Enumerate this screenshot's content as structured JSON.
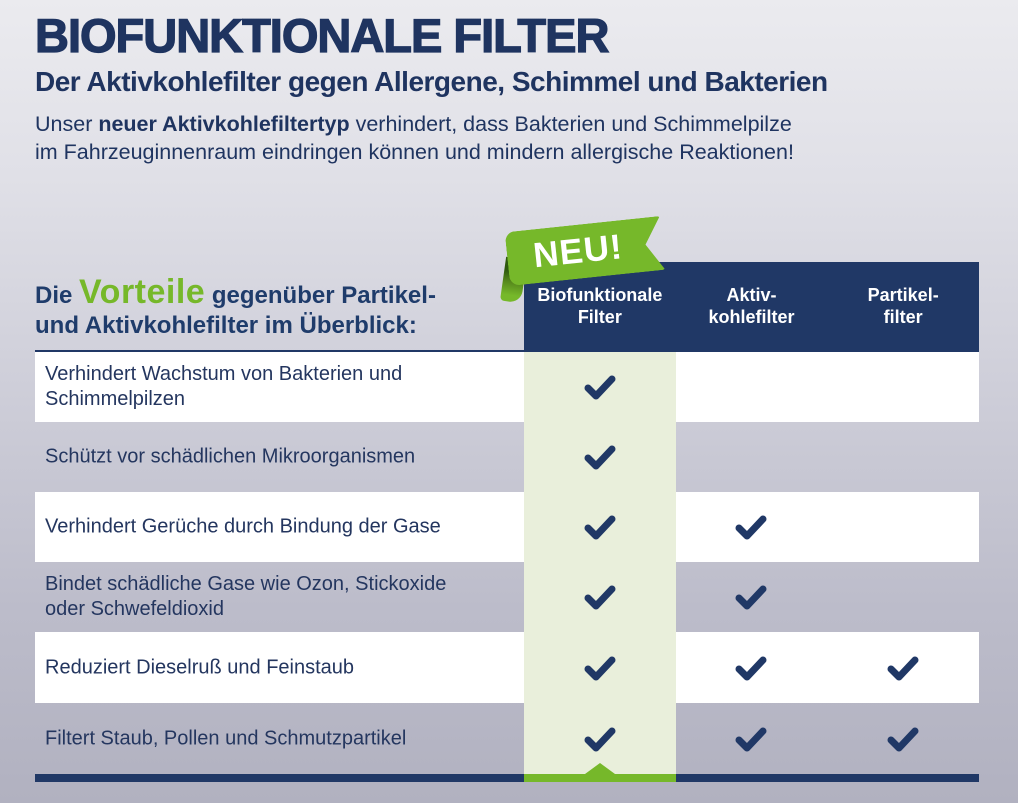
{
  "header": {
    "title": "BIOFUNKTIONALE FILTER",
    "subtitle": "Der Aktivkohlefilter gegen Allergene, Schimmel und Bakterien",
    "lead": {
      "prefix": "Unser ",
      "bold": "neuer Aktivkohlefiltertyp",
      "rest_line1": " verhindert, dass Bakterien und Schimmelpilze",
      "line2": "im Fahrzeuginnenraum eindringen können und mindern allergische Reaktionen!"
    }
  },
  "comparison": {
    "caption": {
      "pre": "Die ",
      "highlight": "Vorteile",
      "post": " gegenüber Partikel-",
      "line2": "und Aktivkohlefilter im Überblick:"
    },
    "ribbon_label": "NEU!",
    "columns": [
      {
        "label": "Biofunktionale\nFilter",
        "highlighted": true
      },
      {
        "label": "Aktiv-\nkohlefilter",
        "highlighted": false
      },
      {
        "label": "Partikel-\nfilter",
        "highlighted": false
      }
    ],
    "rows": [
      {
        "label": "Verhindert Wachstum von Bakterien und Schimmelpilzen",
        "checks": [
          true,
          false,
          false
        ]
      },
      {
        "label": "Schützt vor schädlichen Mikroorganismen",
        "checks": [
          true,
          false,
          false
        ]
      },
      {
        "label": "Verhindert Gerüche durch Bindung der Gase",
        "checks": [
          true,
          true,
          false
        ]
      },
      {
        "label": "Bindet schädliche Gase wie Ozon, Stickoxide\noder Schwefeldioxid",
        "checks": [
          true,
          true,
          false
        ]
      },
      {
        "label": "Reduziert Dieselruß und Feinstaub",
        "checks": [
          true,
          true,
          true
        ]
      },
      {
        "label": "Filtert Staub, Pollen und Schmutzpartikel",
        "checks": [
          true,
          true,
          true
        ]
      }
    ]
  },
  "colors": {
    "navy": "#203866",
    "text_navy": "#1f3460",
    "green": "#76b82a",
    "pale_green": "#e9efdb",
    "row_white": "#ffffff",
    "bg_top": "#ebebef",
    "bg_bottom": "#b1b1c0"
  }
}
